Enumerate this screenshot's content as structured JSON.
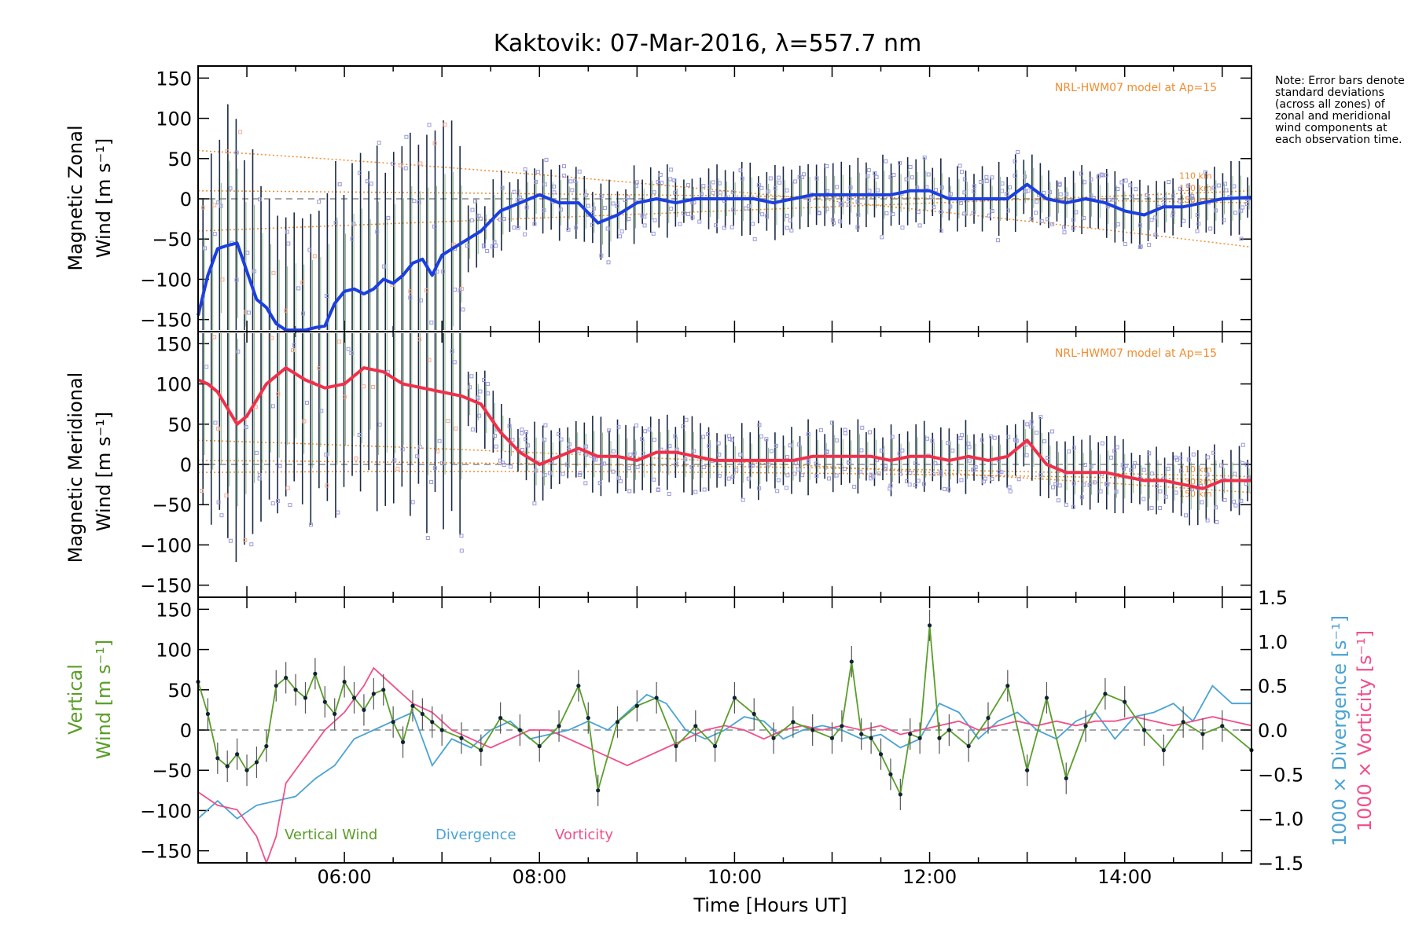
{
  "title": "Kaktovik: 07-Mar-2016, λ=557.7 nm",
  "note": "Note: Error bars denote standard deviations (across all zones) of zonal and meridional wind components at each observation time.",
  "xaxis": {
    "label": "Time [Hours UT]",
    "ticks": [
      "06:00",
      "08:00",
      "10:00",
      "12:00",
      "14:00"
    ],
    "tick_hours": [
      6,
      8,
      10,
      12,
      14
    ],
    "range_hours": [
      4.5,
      15.3
    ]
  },
  "panels": {
    "zonal": {
      "ylabel_line1": "Magnetic Zonal",
      "ylabel_line2": "Wind [m s⁻¹]",
      "model_label": "NRL-HWM07 model at Ap=15",
      "model_alt_labels": [
        "110 km",
        "130 km",
        "150 km"
      ],
      "yticks": [
        "150",
        "100",
        "50",
        "0",
        "−50",
        "−100",
        "−150"
      ]
    },
    "meridional": {
      "ylabel_line1": "Magnetic Meridional",
      "ylabel_line2": "Wind [m s⁻¹]",
      "model_label": "NRL-HWM07 model at Ap=15",
      "model_alt_labels": [
        "110 km",
        "130 km",
        "150 km"
      ],
      "yticks": [
        "150",
        "100",
        "50",
        "0",
        "−50",
        "−100",
        "−150"
      ]
    },
    "vertical": {
      "ylabel_line1": "Vertical",
      "ylabel_line2": "Wind [m s⁻¹]",
      "right_label_div": "1000 × Divergence [s⁻¹]",
      "right_label_vort": "1000 × Vorticity [s⁻¹]",
      "yticks": [
        "150",
        "100",
        "50",
        "0",
        "−50",
        "−100",
        "−150"
      ],
      "right_ticks": [
        "1.5",
        "1.0",
        "0.5",
        "0.0",
        "−0.5",
        "−1.0",
        "−1.5"
      ],
      "legend": [
        "Vertical Wind",
        "Divergence",
        "Vorticity"
      ]
    }
  },
  "colors": {
    "zonal_line": "#1c3fe0",
    "meridional_line": "#f0304a",
    "vertical": "#5a9e2a",
    "divergence": "#4aa3d4",
    "vorticity": "#f0508a",
    "model": "#f08c30",
    "scatter_blue": "#9a9adc",
    "scatter_orange": "#f5a990",
    "errorbar": "#1a2a44"
  },
  "chart_data": [
    {
      "type": "line",
      "title": "Kaktovik: 07-Mar-2016, λ=557.7 nm",
      "xlabel": "Time [Hours UT]",
      "ylabel": "Magnetic Zonal Wind [m s⁻¹]",
      "xlim": [
        4.5,
        15.3
      ],
      "ylim": [
        -165,
        165
      ],
      "series": [
        {
          "x": [
            4.5,
            4.6,
            4.7,
            4.8,
            4.9,
            5.0,
            5.1,
            5.2,
            5.3,
            5.4,
            5.5,
            5.6,
            5.7,
            5.8,
            5.9,
            6.0,
            6.1,
            6.2,
            6.3,
            6.4,
            6.5,
            6.6,
            6.7,
            6.8,
            6.9,
            7.0,
            7.2,
            7.4,
            7.6,
            7.8,
            8.0,
            8.2,
            8.4,
            8.6,
            8.8,
            9.0,
            9.2,
            9.4,
            9.6,
            9.8,
            10.0,
            10.2,
            10.4,
            10.6,
            10.8,
            11.0,
            11.2,
            11.4,
            11.6,
            11.8,
            12.0,
            12.2,
            12.4,
            12.6,
            12.8,
            13.0,
            13.2,
            13.4,
            13.6,
            13.8,
            14.0,
            14.2,
            14.4,
            14.6,
            14.8,
            15.0,
            15.3
          ],
          "y": [
            -145,
            -95,
            -62,
            -58,
            -55,
            -90,
            -125,
            -135,
            -155,
            -175,
            -175,
            -165,
            -160,
            -158,
            -130,
            -115,
            -112,
            -118,
            -112,
            -100,
            -105,
            -95,
            -80,
            -75,
            -95,
            -70,
            -55,
            -40,
            -15,
            -5,
            5,
            -5,
            -5,
            -30,
            -20,
            -5,
            0,
            -5,
            0,
            0,
            0,
            0,
            -5,
            0,
            5,
            5,
            5,
            5,
            5,
            10,
            10,
            0,
            0,
            0,
            0,
            18,
            0,
            -5,
            0,
            -5,
            -15,
            -20,
            -10,
            -10,
            -5,
            0,
            2
          ]
        }
      ]
    },
    {
      "type": "line",
      "xlabel": "Time [Hours UT]",
      "ylabel": "Magnetic Meridional Wind [m s⁻¹]",
      "xlim": [
        4.5,
        15.3
      ],
      "ylim": [
        -165,
        165
      ],
      "series": [
        {
          "x": [
            4.5,
            4.6,
            4.7,
            4.8,
            4.9,
            5.0,
            5.2,
            5.4,
            5.6,
            5.8,
            6.0,
            6.2,
            6.4,
            6.6,
            6.8,
            7.0,
            7.2,
            7.4,
            7.6,
            7.8,
            8.0,
            8.2,
            8.4,
            8.6,
            8.8,
            9.0,
            9.2,
            9.4,
            9.6,
            9.8,
            10.0,
            10.2,
            10.4,
            10.6,
            10.8,
            11.0,
            11.2,
            11.4,
            11.6,
            11.8,
            12.0,
            12.2,
            12.4,
            12.6,
            12.8,
            13.0,
            13.2,
            13.4,
            13.6,
            13.8,
            14.0,
            14.2,
            14.4,
            14.6,
            14.8,
            15.0,
            15.3
          ],
          "y": [
            105,
            100,
            90,
            70,
            50,
            60,
            100,
            120,
            105,
            95,
            100,
            120,
            115,
            100,
            95,
            90,
            85,
            75,
            40,
            15,
            0,
            10,
            20,
            10,
            10,
            5,
            15,
            15,
            10,
            5,
            5,
            5,
            5,
            5,
            10,
            10,
            10,
            10,
            5,
            10,
            10,
            5,
            10,
            5,
            10,
            30,
            0,
            -10,
            -10,
            -10,
            -15,
            -20,
            -20,
            -25,
            -30,
            -20,
            -20
          ]
        }
      ]
    },
    {
      "type": "line",
      "ylabel": "Vertical Wind [m s⁻¹]",
      "xlabel": "Time [Hours UT]",
      "xlim": [
        4.5,
        15.3
      ],
      "ylim": [
        -165,
        165
      ],
      "series": [
        {
          "name": "Vertical Wind",
          "x": [
            4.5,
            4.6,
            4.7,
            4.8,
            4.9,
            5.0,
            5.1,
            5.2,
            5.3,
            5.4,
            5.5,
            5.6,
            5.7,
            5.8,
            5.9,
            6.0,
            6.1,
            6.2,
            6.3,
            6.4,
            6.5,
            6.6,
            6.7,
            6.8,
            6.9,
            7.0,
            7.2,
            7.4,
            7.6,
            7.8,
            8.0,
            8.2,
            8.4,
            8.5,
            8.6,
            8.8,
            9.0,
            9.2,
            9.4,
            9.6,
            9.8,
            10.0,
            10.2,
            10.4,
            10.6,
            10.8,
            11.0,
            11.1,
            11.2,
            11.3,
            11.4,
            11.5,
            11.6,
            11.7,
            11.8,
            11.9,
            12.0,
            12.1,
            12.2,
            12.4,
            12.6,
            12.8,
            13.0,
            13.2,
            13.4,
            13.6,
            13.8,
            14.0,
            14.2,
            14.4,
            14.6,
            14.8,
            15.0,
            15.3
          ],
          "y": [
            60,
            20,
            -35,
            -45,
            -30,
            -50,
            -40,
            -20,
            55,
            65,
            50,
            40,
            70,
            35,
            20,
            60,
            40,
            25,
            45,
            50,
            10,
            -15,
            30,
            20,
            10,
            0,
            -10,
            -25,
            15,
            0,
            -20,
            5,
            55,
            15,
            -75,
            10,
            30,
            40,
            -20,
            5,
            -20,
            40,
            20,
            -10,
            10,
            0,
            -10,
            5,
            85,
            -5,
            -10,
            -30,
            -55,
            -80,
            -5,
            -10,
            130,
            -10,
            0,
            -20,
            15,
            55,
            -50,
            40,
            -60,
            5,
            45,
            35,
            0,
            -25,
            10,
            -5,
            5,
            -25
          ]
        },
        {
          "name": "Divergence",
          "x": [
            4.5,
            4.7,
            4.9,
            5.1,
            5.3,
            5.5,
            5.7,
            5.9,
            6.1,
            6.3,
            6.5,
            6.7,
            6.9,
            7.1,
            7.3,
            7.5,
            7.7,
            7.9,
            8.1,
            8.3,
            8.5,
            8.7,
            8.9,
            9.1,
            9.3,
            9.5,
            9.7,
            9.9,
            10.1,
            10.3,
            10.5,
            10.7,
            10.9,
            11.1,
            11.3,
            11.5,
            11.7,
            11.9,
            12.1,
            12.3,
            12.5,
            12.7,
            12.9,
            13.1,
            13.3,
            13.5,
            13.7,
            13.9,
            14.1,
            14.3,
            14.5,
            14.7,
            14.9,
            15.1,
            15.3
          ],
          "y": [
            -1.0,
            -0.8,
            -1.0,
            -0.85,
            -0.8,
            -0.75,
            -0.55,
            -0.4,
            -0.1,
            0.0,
            0.1,
            0.2,
            -0.4,
            -0.1,
            -0.2,
            0.0,
            0.1,
            -0.1,
            -0.05,
            0.0,
            0.1,
            0.0,
            0.2,
            0.4,
            0.3,
            0.0,
            -0.1,
            0.0,
            0.15,
            0.1,
            -0.1,
            0.0,
            0.05,
            0.0,
            -0.1,
            -0.05,
            -0.2,
            -0.1,
            0.3,
            0.2,
            -0.1,
            0.1,
            0.2,
            0.0,
            -0.1,
            0.1,
            0.2,
            -0.1,
            0.15,
            0.2,
            0.3,
            0.1,
            0.5,
            0.3,
            0.3
          ]
        },
        {
          "name": "Vorticity",
          "x": [
            4.5,
            4.7,
            4.9,
            5.1,
            5.2,
            5.3,
            5.4,
            5.6,
            5.8,
            6.0,
            6.2,
            6.3,
            6.5,
            6.7,
            6.9,
            7.1,
            7.3,
            7.5,
            7.7,
            7.9,
            8.1,
            8.3,
            8.5,
            8.7,
            8.9,
            9.1,
            9.3,
            9.5,
            9.7,
            9.9,
            10.1,
            10.3,
            10.5,
            10.7,
            10.9,
            11.1,
            11.3,
            11.5,
            11.7,
            11.9,
            12.1,
            12.3,
            12.5,
            12.7,
            12.9,
            13.1,
            13.3,
            13.5,
            13.7,
            13.9,
            14.1,
            14.3,
            14.5,
            14.7,
            14.9,
            15.1,
            15.3
          ],
          "y": [
            -0.7,
            -0.85,
            -0.9,
            -1.2,
            -1.5,
            -1.2,
            -0.6,
            -0.3,
            0.0,
            0.2,
            0.5,
            0.7,
            0.5,
            0.3,
            0.2,
            0.0,
            -0.1,
            -0.2,
            -0.1,
            0.0,
            0.0,
            -0.1,
            -0.2,
            -0.3,
            -0.4,
            -0.3,
            -0.2,
            -0.1,
            0.0,
            0.05,
            0.0,
            -0.1,
            0.0,
            0.05,
            0.0,
            0.05,
            0.0,
            0.05,
            -0.05,
            0.0,
            0.05,
            0.1,
            0.0,
            0.05,
            0.1,
            0.05,
            0.1,
            0.05,
            0.1,
            0.1,
            0.15,
            0.1,
            0.05,
            0.1,
            0.15,
            0.1,
            0.05
          ]
        }
      ],
      "right_axis": {
        "label": "1000 × Divergence [s⁻¹] / 1000 × Vorticity [s⁻¹]",
        "ylim": [
          -1.5,
          1.5
        ]
      }
    }
  ]
}
